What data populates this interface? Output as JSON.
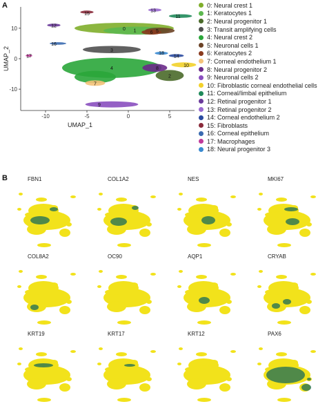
{
  "panel_a_label": "A",
  "panel_b_label": "B",
  "chart_data": [
    {
      "type": "scatter",
      "xlabel": "UMAP_1",
      "ylabel": "UMAP_2",
      "xlim": [
        -13,
        8
      ],
      "ylim": [
        -17,
        17
      ],
      "xticks": [
        -10,
        -5,
        0,
        5
      ],
      "yticks": [
        -10,
        0,
        10
      ],
      "legend_position": "right",
      "clusters": [
        {
          "id": 0,
          "name": "0: Neural crest 1",
          "color": "#7fae2b",
          "label_x": -0.5,
          "label_y": 10
        },
        {
          "id": 1,
          "name": "1: Keratocytes 1",
          "color": "#5cb84f",
          "label_x": 0.8,
          "label_y": 9.4
        },
        {
          "id": 2,
          "name": "2: Neural progenitor 1",
          "color": "#4a6a2a",
          "label_x": 5,
          "label_y": -5.5
        },
        {
          "id": 3,
          "name": "3: Transit amplifying cells",
          "color": "#505050",
          "label_x": -2,
          "label_y": 3
        },
        {
          "id": 4,
          "name": "4: Neural crest 2",
          "color": "#2aa63a",
          "label_x": -2,
          "label_y": -3
        },
        {
          "id": 5,
          "name": "5: Neuronal cells 1",
          "color": "#6b4226",
          "label_x": 3.5,
          "label_y": 9.3
        },
        {
          "id": 6,
          "name": "6: Keratocytes 2",
          "color": "#8a3a1e",
          "label_x": 2.8,
          "label_y": 8.8
        },
        {
          "id": 7,
          "name": "7: Corneal endothelium 1",
          "color": "#f4c27a",
          "label_x": -4,
          "label_y": -8
        },
        {
          "id": 8,
          "name": "8: Neural progenitor 2",
          "color": "#6a2a8a",
          "label_x": 3.5,
          "label_y": -3
        },
        {
          "id": 9,
          "name": "9: Neuronal cells 2",
          "color": "#8a4fbf",
          "label_x": -3.5,
          "label_y": -15
        },
        {
          "id": 10,
          "name": "10: Fibroblastic corneal endothelial cells",
          "color": "#f2d12a",
          "label_x": 7,
          "label_y": -2
        },
        {
          "id": 11,
          "name": "11: Corneal/limbal epithelium",
          "color": "#1f8a5a",
          "label_x": 6,
          "label_y": 14
        },
        {
          "id": 12,
          "name": "12: Retinal progenitor 1",
          "color": "#6a3a9a",
          "label_x": -9,
          "label_y": 11
        },
        {
          "id": 13,
          "name": "13: Retinal progenitor 2",
          "color": "#9a6ad0",
          "label_x": 3,
          "label_y": 16
        },
        {
          "id": 14,
          "name": "14: Corneal endothelium 2",
          "color": "#2a4aa0",
          "label_x": 5.8,
          "label_y": 1
        },
        {
          "id": 15,
          "name": "15: Fibroblasts",
          "color": "#8a2a3a",
          "label_x": -5,
          "label_y": 15
        },
        {
          "id": 16,
          "name": "16: Corneal epithelium",
          "color": "#3a6ab0",
          "label_x": -9,
          "label_y": 5
        },
        {
          "id": 17,
          "name": "17: Macrophages",
          "color": "#c03a9a",
          "label_x": -12,
          "label_y": 1
        },
        {
          "id": 18,
          "name": "18: Neural progenitor 3",
          "color": "#3a8ad0",
          "label_x": 4,
          "label_y": 2
        }
      ]
    },
    {
      "type": "scatter",
      "description_free": true,
      "features": [
        "FBN1",
        "COL1A2",
        "NES",
        "MKI67",
        "COL8A2",
        "OC90",
        "AQP1",
        "CRYAB",
        "KRT19",
        "KRT17",
        "KRT12",
        "PAX6"
      ],
      "low_color": "#f2e21b",
      "high_color": "#1a6b5a"
    }
  ]
}
